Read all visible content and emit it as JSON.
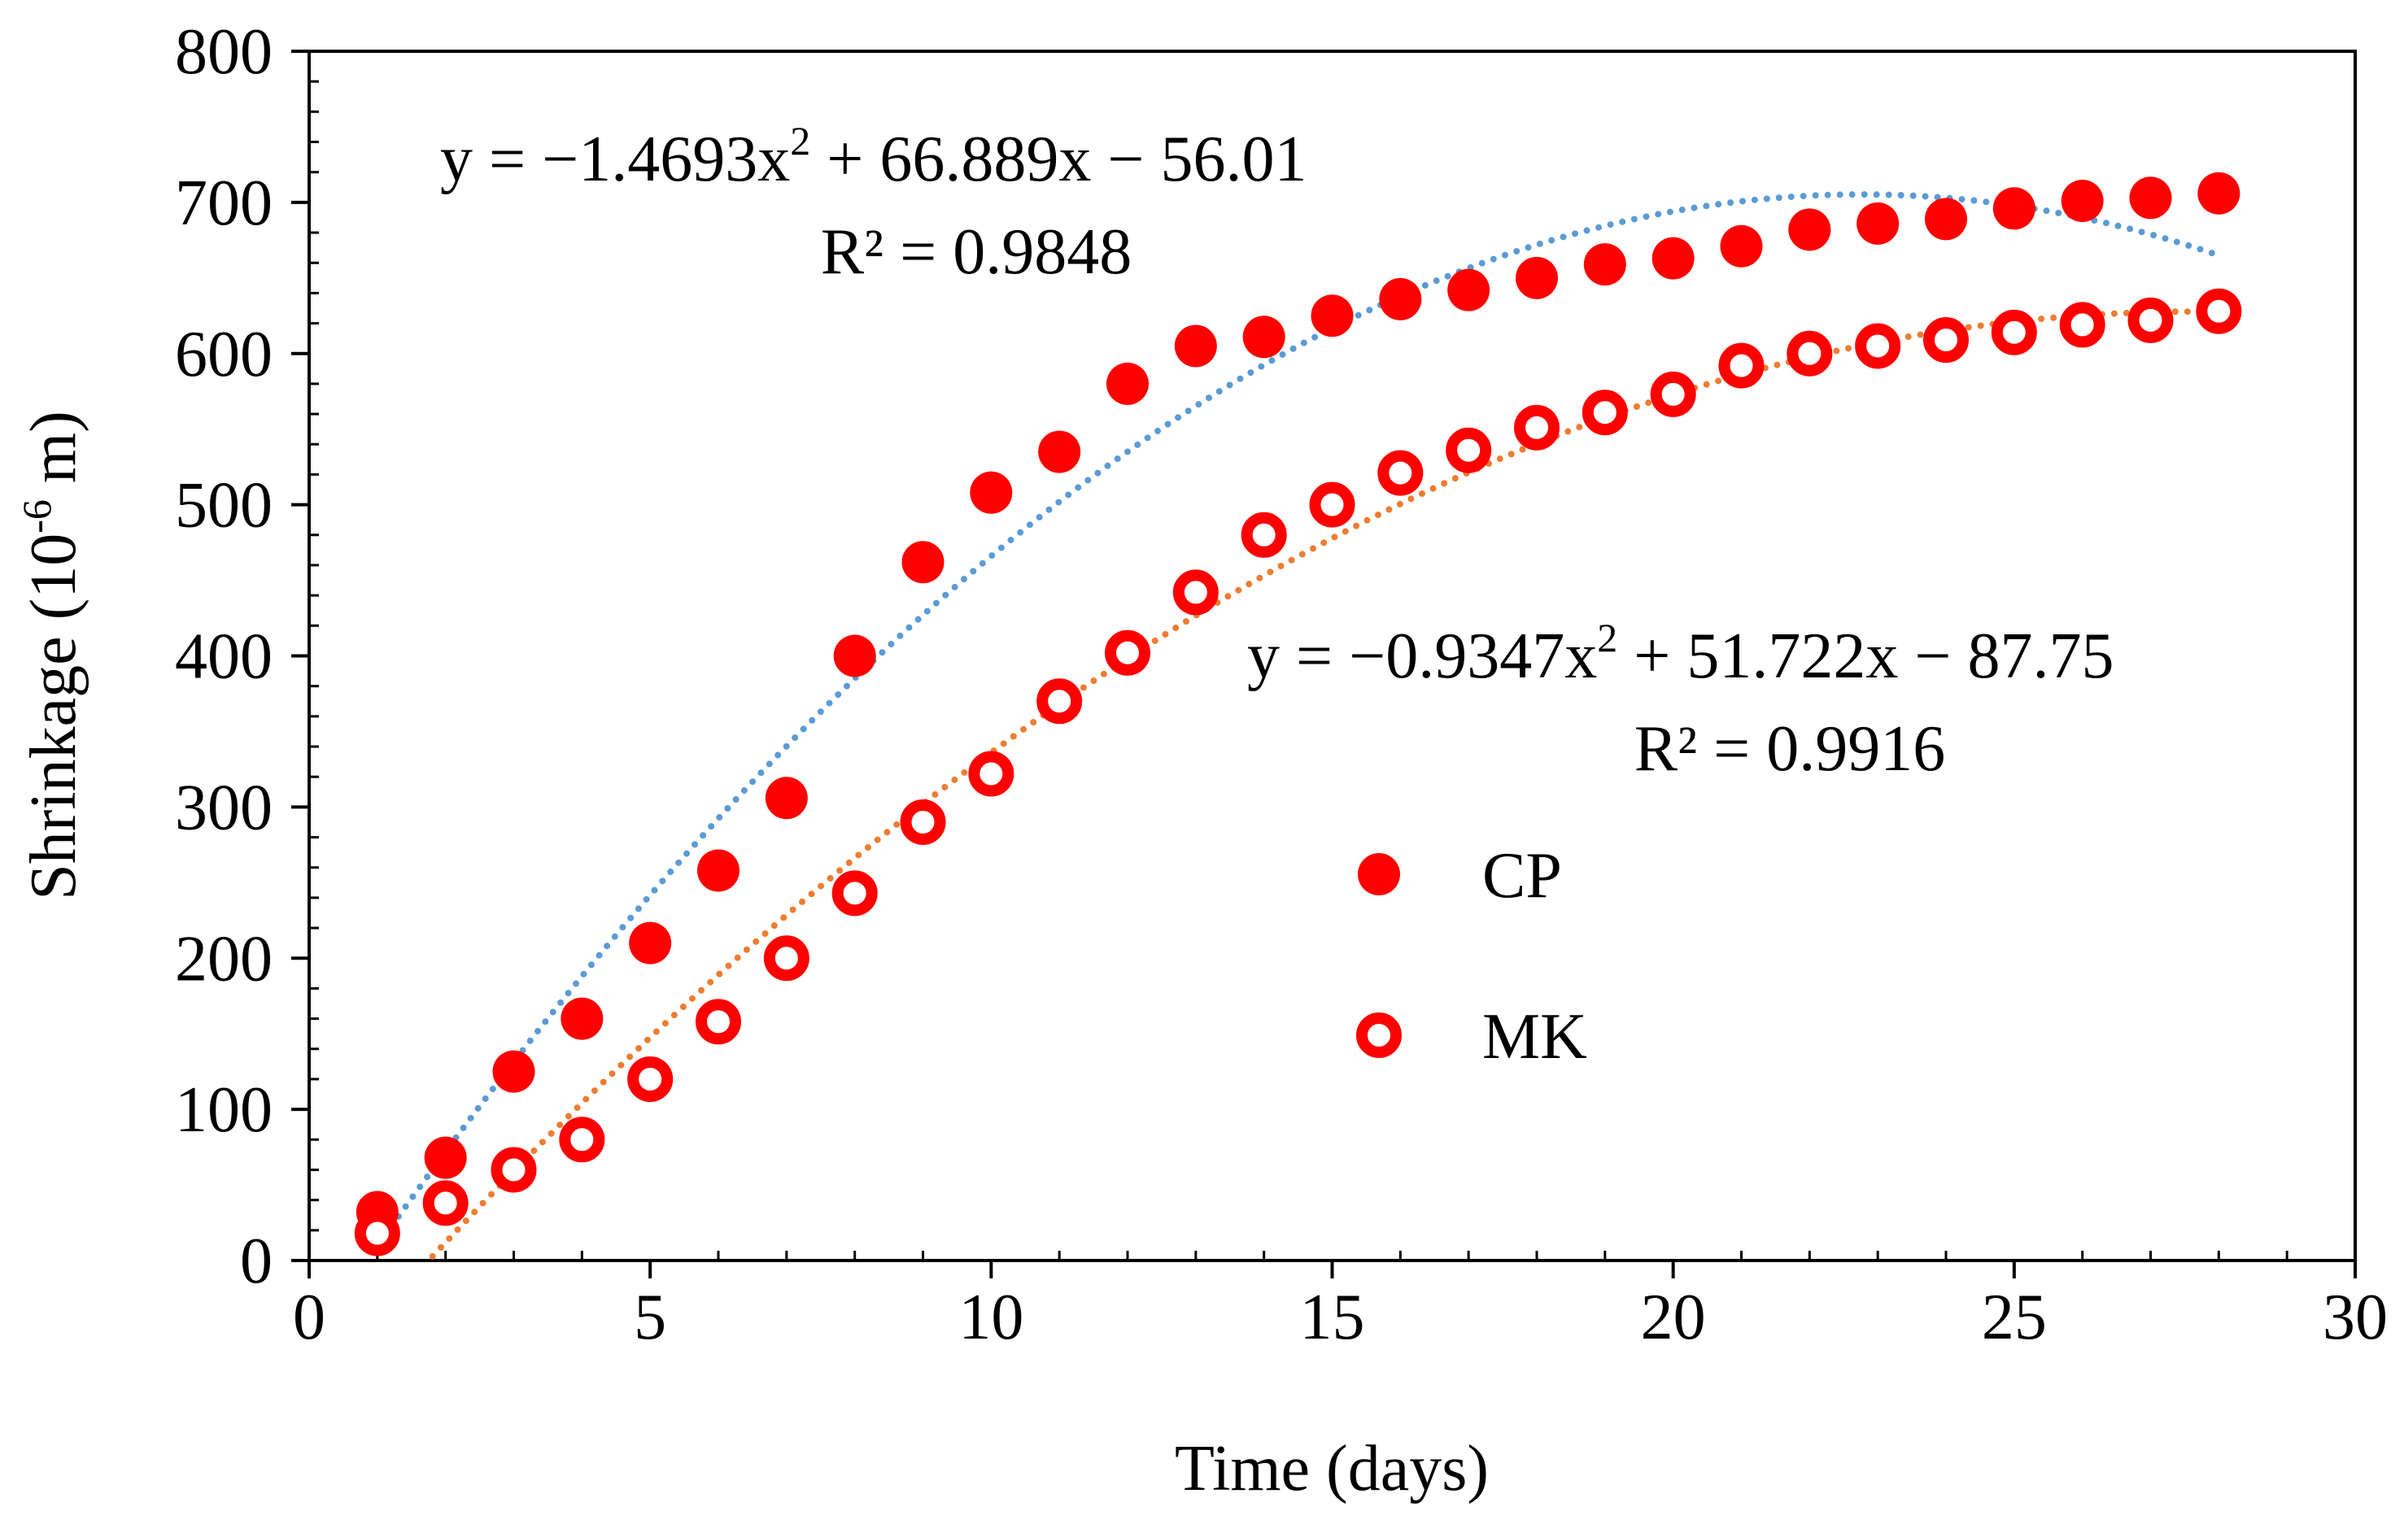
{
  "chart_data": {
    "type": "scatter",
    "title": "",
    "xlabel": "Time (days)",
    "ylabel_main": "Shrinkage (10",
    "ylabel_sup": "-6",
    "ylabel_end": " m)",
    "xlim": [
      0,
      30
    ],
    "ylim": [
      0,
      800
    ],
    "x_ticks": [
      0,
      5,
      10,
      15,
      20,
      25,
      30
    ],
    "y_ticks": [
      0,
      100,
      200,
      300,
      400,
      500,
      600,
      700,
      800
    ],
    "grid": false,
    "legend_position": "center-right",
    "series": [
      {
        "name": "CP",
        "marker": "filled-circle",
        "color": "#ff0000",
        "trendline_color": "#5b9bd5",
        "trendline": {
          "type": "poly2",
          "a": -1.4693,
          "b": 66.889,
          "c": -56.01
        },
        "x": [
          1,
          2,
          3,
          4,
          5,
          6,
          7,
          8,
          9,
          10,
          11,
          12,
          13,
          14,
          15,
          16,
          17,
          18,
          19,
          20,
          21,
          22,
          23,
          24,
          25,
          26,
          27,
          28
        ],
        "values": [
          32,
          68,
          125,
          160,
          210,
          258,
          306,
          400,
          462,
          508,
          535,
          580,
          605,
          611,
          625,
          636,
          642,
          650,
          659,
          663,
          671,
          682,
          686,
          689,
          696,
          701,
          703,
          706
        ]
      },
      {
        "name": "MK",
        "marker": "open-circle",
        "color": "#ff0000",
        "trendline_color": "#ed7d31",
        "trendline": {
          "type": "poly2",
          "a": -0.9347,
          "b": 51.722,
          "c": -87.75
        },
        "x": [
          1,
          2,
          3,
          4,
          5,
          6,
          7,
          8,
          9,
          10,
          11,
          12,
          13,
          14,
          15,
          16,
          17,
          18,
          19,
          20,
          21,
          22,
          23,
          24,
          25,
          26,
          27,
          28
        ],
        "values": [
          18,
          38,
          60,
          80,
          120,
          158,
          200,
          243,
          290,
          322,
          370,
          402,
          442,
          480,
          500,
          521,
          536,
          551,
          561,
          573,
          592,
          600,
          605,
          609,
          614,
          619,
          622,
          628
        ]
      }
    ],
    "annotations": {
      "cp_equation_base": "y = −1.4693x",
      "cp_equation_sup": "2",
      "cp_equation_rest": " + 66.889x − 56.01",
      "cp_r2": "R² = 0.9848",
      "mk_equation_base": "y = −0.9347x",
      "mk_equation_sup": "2",
      "mk_equation_rest": " + 51.722x − 87.75",
      "mk_r2": "R² = 0.9916"
    }
  }
}
